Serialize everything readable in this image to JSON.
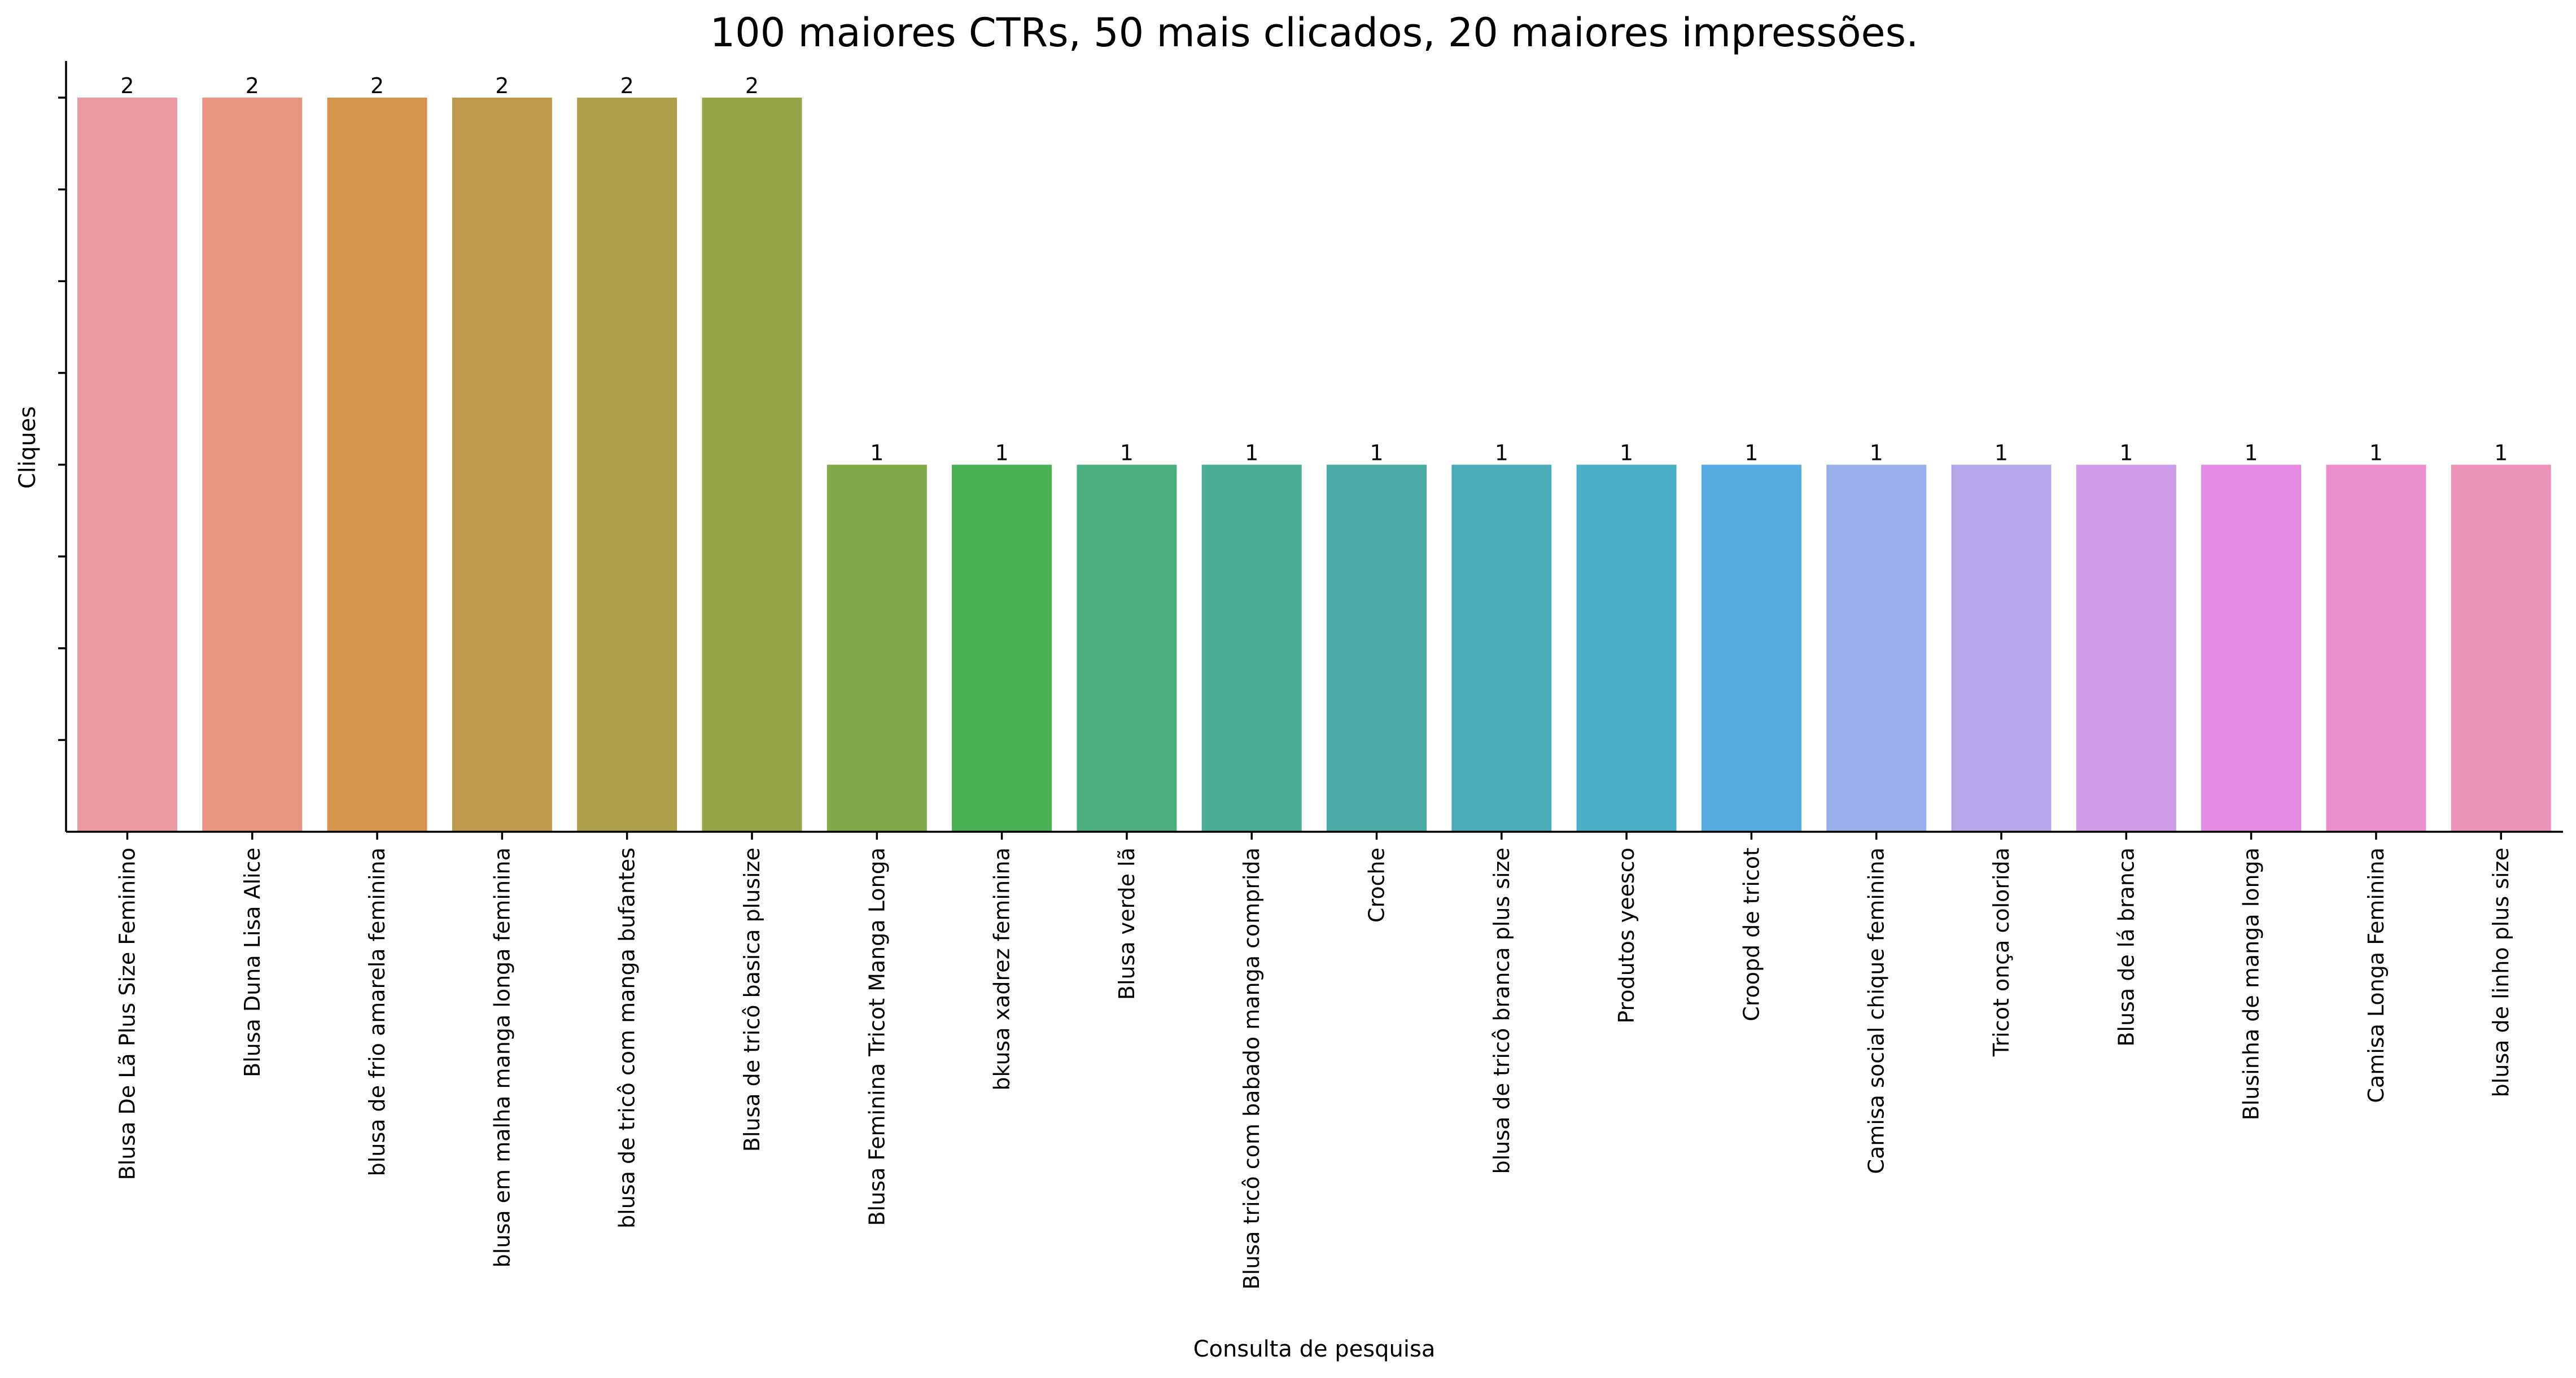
{
  "chart_data": {
    "type": "bar",
    "title": "100 maiores CTRs, 50 mais clicados, 20 maiores impressões.",
    "xlabel": "Consulta de pesquisa",
    "ylabel": "Cliques",
    "ylim": [
      0,
      2.1
    ],
    "yticks": [
      0.25,
      0.5,
      0.75,
      1.0,
      1.25,
      1.5,
      1.75,
      2.0
    ],
    "show_ytick_labels": false,
    "grid": false,
    "categories": [
      "Blusa De Lã Plus Size Feminino",
      "Blusa Duna Lisa Alice",
      "blusa de frio amarela feminina",
      "blusa em malha manga longa feminina",
      "blusa de tricô com manga bufantes",
      "Blusa de tricô basica plusize",
      "Blusa Feminina Tricot Manga Longa",
      "bkusa xadrez feminina",
      "Blusa verde lã",
      "Blusa tricô com babado manga comprida",
      "Croche",
      "blusa de tricô branca plus size",
      "Produtos yeesco",
      "Croopd de tricot",
      "Camisa social chique feminina",
      "Tricot onça colorida",
      "Blusa de lá branca",
      "Blusinha de manga longa",
      "Camisa Longa Feminina",
      "blusa de linho plus size"
    ],
    "values": [
      2,
      2,
      2,
      2,
      2,
      2,
      1,
      1,
      1,
      1,
      1,
      1,
      1,
      1,
      1,
      1,
      1,
      1,
      1,
      1
    ],
    "data_labels": [
      "2",
      "2",
      "2",
      "2",
      "2",
      "2",
      "1",
      "1",
      "1",
      "1",
      "1",
      "1",
      "1",
      "1",
      "1",
      "1",
      "1",
      "1",
      "1",
      "1"
    ],
    "colors": [
      "#ea98a2",
      "#e89582",
      "#d4944c",
      "#bf9a4d",
      "#aba048",
      "#97a447",
      "#7faa4a",
      "#48b153",
      "#4baf80",
      "#4aae96",
      "#4aaba7",
      "#4bacb9",
      "#4baec6",
      "#55ace0",
      "#97aee8",
      "#b6a7ea",
      "#cf9be8",
      "#e589e5",
      "#ea8fcb",
      "#e992b6"
    ]
  }
}
